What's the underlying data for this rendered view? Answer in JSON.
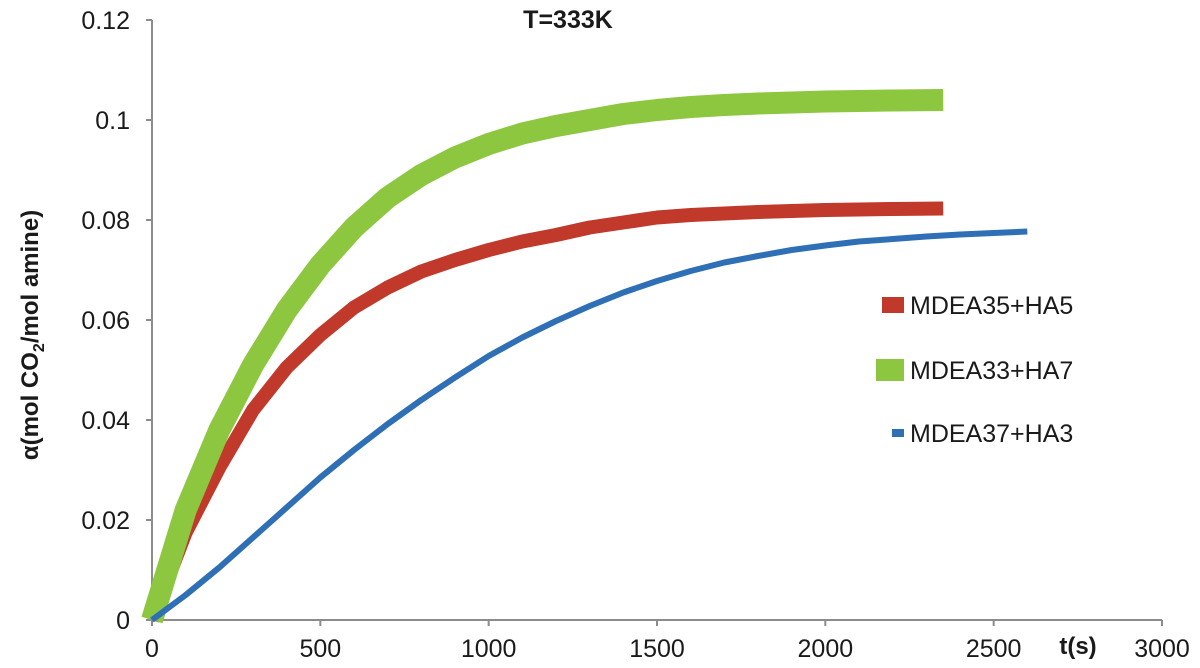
{
  "chart_data": {
    "type": "line",
    "title": "T=333K",
    "xlabel": "t(s)",
    "ylabel_main": "α(mol CO",
    "ylabel_sub": "2",
    "ylabel_tail": "/mol amine)",
    "xlim": [
      0,
      3000
    ],
    "ylim": [
      0,
      0.12
    ],
    "x_ticks": [
      "0",
      "500",
      "1000",
      "1500",
      "2000",
      "2500",
      "3000"
    ],
    "y_ticks": [
      "0",
      "0.02",
      "0.04",
      "0.06",
      "0.08",
      "0.1",
      "0.12"
    ],
    "grid": false,
    "legend_position": "right",
    "series": [
      {
        "name": "MDEA35+HA5",
        "color": "#c0392b",
        "x": [
          0,
          100,
          200,
          300,
          400,
          500,
          600,
          700,
          800,
          900,
          1000,
          1100,
          1200,
          1300,
          1400,
          1500,
          1600,
          1700,
          1800,
          1900,
          2000,
          2100,
          2200,
          2350
        ],
        "y": [
          0,
          0.0175,
          0.0305,
          0.042,
          0.0505,
          0.057,
          0.0625,
          0.0665,
          0.0697,
          0.072,
          0.074,
          0.0757,
          0.077,
          0.0785,
          0.0795,
          0.0805,
          0.081,
          0.0813,
          0.0816,
          0.0818,
          0.082,
          0.0821,
          0.0822,
          0.0823
        ]
      },
      {
        "name": "MDEA33+HA7",
        "color": "#8dc63f",
        "x": [
          0,
          100,
          200,
          300,
          400,
          500,
          600,
          700,
          800,
          900,
          1000,
          1100,
          1200,
          1300,
          1400,
          1500,
          1600,
          1700,
          1800,
          1900,
          2000,
          2100,
          2200,
          2350
        ],
        "y": [
          0,
          0.022,
          0.038,
          0.051,
          0.062,
          0.071,
          0.0785,
          0.0845,
          0.089,
          0.0925,
          0.0952,
          0.0973,
          0.0988,
          0.1,
          0.1012,
          0.102,
          0.1026,
          0.103,
          0.1033,
          0.1035,
          0.1037,
          0.1038,
          0.1039,
          0.104
        ]
      },
      {
        "name": "MDEA37+HA3",
        "color": "#2e6fb5",
        "x": [
          0,
          100,
          200,
          300,
          400,
          500,
          600,
          700,
          800,
          900,
          1000,
          1100,
          1200,
          1300,
          1400,
          1500,
          1600,
          1700,
          1800,
          1900,
          2000,
          2100,
          2200,
          2300,
          2400,
          2500,
          2600
        ],
        "y": [
          0,
          0.005,
          0.0105,
          0.0165,
          0.0225,
          0.0285,
          0.034,
          0.0392,
          0.044,
          0.0485,
          0.0528,
          0.0565,
          0.0598,
          0.0628,
          0.0655,
          0.0678,
          0.0698,
          0.0715,
          0.0728,
          0.074,
          0.0749,
          0.0757,
          0.0762,
          0.0767,
          0.0771,
          0.0774,
          0.0777
        ]
      }
    ]
  }
}
